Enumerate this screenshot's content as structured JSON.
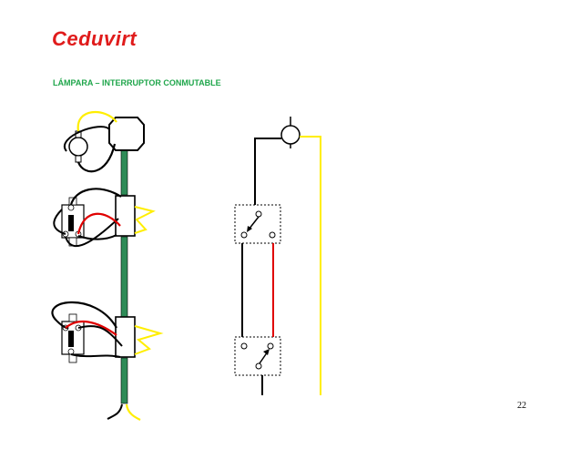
{
  "header": {
    "logo_text": "Ceduvirt",
    "title": "LÁMPARA – INTERRUPTOR CONMUTABLE"
  },
  "footer": {
    "page_number": "22"
  },
  "colors": {
    "logo": "#e01b1b",
    "title": "#1fa64b",
    "conduit": "#2e8b57",
    "wire_yellow": "#ffee00",
    "wire_red": "#e00000",
    "wire_black": "#000000"
  }
}
